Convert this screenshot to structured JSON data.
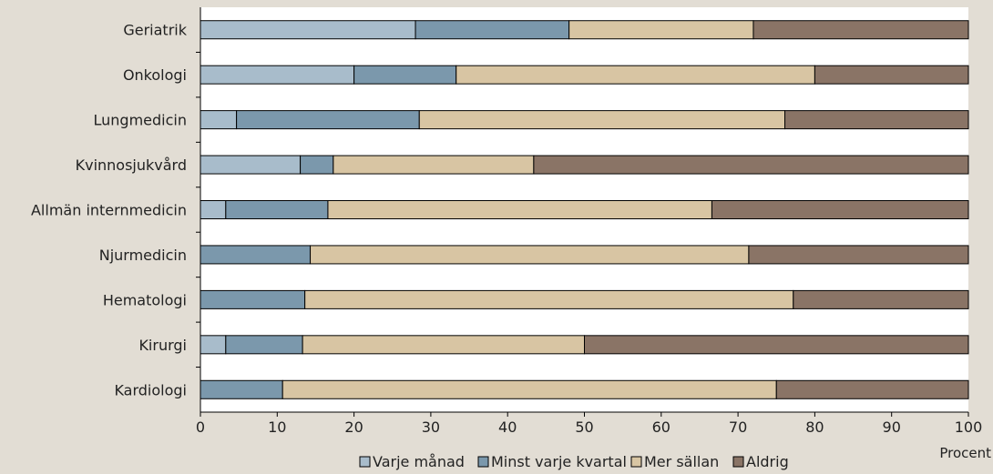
{
  "chart_data": {
    "type": "bar",
    "orientation": "horizontal",
    "stacked": true,
    "categories": [
      "Geriatrik",
      "Onkologi",
      "Lungmedicin",
      "Kvinnosjukvård",
      "Allmän internmedicin",
      "Njurmedicin",
      "Hematologi",
      "Kirurgi",
      "Kardiologi"
    ],
    "series": [
      {
        "name": "Varje månad",
        "color": "#a8bccb",
        "values": [
          28,
          20,
          4.7,
          13,
          3.3,
          0,
          0,
          3.3,
          0
        ]
      },
      {
        "name": "Minst varje kvartal",
        "color": "#7b98ac",
        "values": [
          20,
          13.3,
          23.8,
          4.3,
          13.3,
          14.3,
          13.6,
          10,
          10.7
        ]
      },
      {
        "name": "Mer sällan",
        "color": "#d8c5a3",
        "values": [
          24,
          46.7,
          47.6,
          26.1,
          50,
          57.1,
          63.6,
          36.7,
          64.3
        ]
      },
      {
        "name": "Aldrig",
        "color": "#8a7466",
        "values": [
          28,
          20,
          23.9,
          56.6,
          33.4,
          28.6,
          22.8,
          50,
          25
        ]
      }
    ],
    "xlabel": "Procent",
    "xlim": [
      0,
      100
    ],
    "xticks": [
      0,
      10,
      20,
      30,
      40,
      50,
      60,
      70,
      80,
      90,
      100
    ],
    "grid": false,
    "legend_position": "bottom"
  }
}
